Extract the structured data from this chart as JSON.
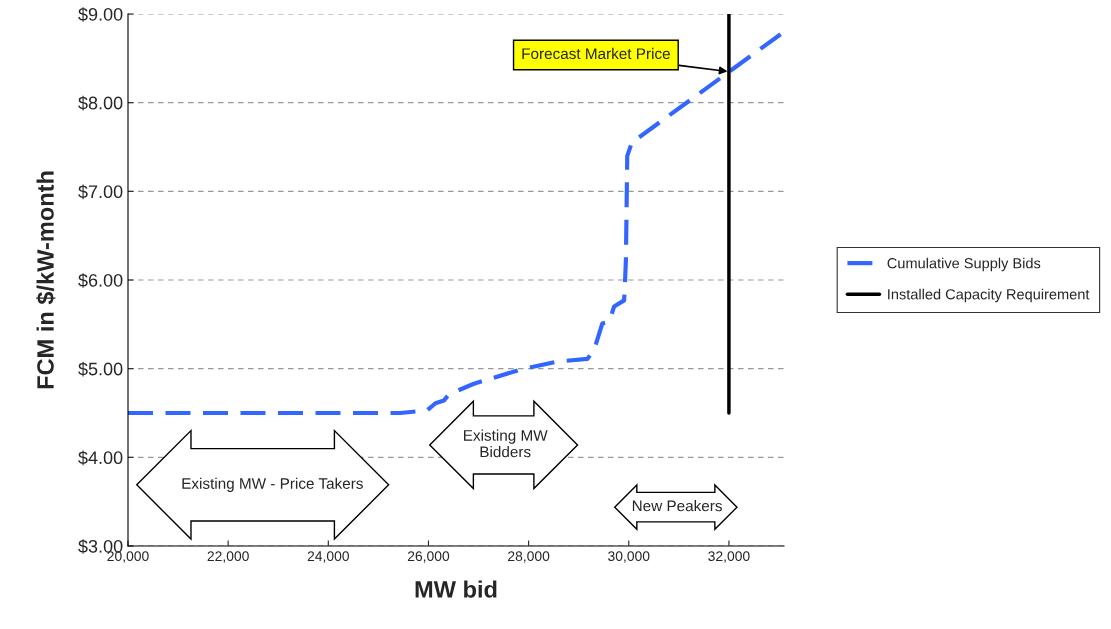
{
  "chart_data": {
    "type": "line",
    "xlabel": "MW bid",
    "ylabel": "FCM in $/kW-month",
    "series": [
      {
        "name": "Cumulative Supply Bids",
        "color": "#3366ff",
        "line_style": "dashed",
        "x": [
          20000,
          25040,
          25440,
          25973,
          26140,
          26307,
          26407,
          26907,
          27840,
          28573,
          29173,
          29307,
          29473,
          29607,
          29707,
          29907,
          29927,
          29943,
          29970,
          30073,
          30160,
          33100
        ],
        "values": [
          4.5,
          4.5,
          4.5,
          4.53,
          4.61,
          4.64,
          4.71,
          4.83,
          4.99,
          5.08,
          5.11,
          5.21,
          5.51,
          5.53,
          5.7,
          5.77,
          6.0,
          6.23,
          7.4,
          7.57,
          7.59,
          8.8
        ]
      },
      {
        "name": "Installed Capacity Requirement",
        "color": "#000000",
        "line_style": "solid",
        "x": [
          32000,
          32000
        ],
        "values": [
          4.5,
          9.0
        ]
      }
    ],
    "annotations": [
      {
        "text": "Forecast Market Price",
        "x": 32000,
        "y": 8.35
      },
      "Existing MW - Price Takers",
      "Existing MW\nBidders",
      "New Peakers"
    ],
    "xlim": [
      20000,
      33100
    ],
    "ylim": [
      3,
      9
    ],
    "xticks": [
      {
        "value": 20000,
        "label": "20,000"
      },
      {
        "value": 22000,
        "label": "22,000"
      },
      {
        "value": 24000,
        "label": "24,000"
      },
      {
        "value": 26000,
        "label": "26,000"
      },
      {
        "value": 28000,
        "label": "28,000"
      },
      {
        "value": 30000,
        "label": "30,000"
      },
      {
        "value": 32000,
        "label": "32,000"
      }
    ],
    "yticks": [
      {
        "value": 3,
        "label": "$3.00"
      },
      {
        "value": 4,
        "label": "$4.00"
      },
      {
        "value": 5,
        "label": "$5.00"
      },
      {
        "value": 6,
        "label": "$6.00"
      },
      {
        "value": 7,
        "label": "$7.00"
      },
      {
        "value": 8,
        "label": "$8.00"
      },
      {
        "value": 9,
        "label": "$9.00"
      }
    ],
    "grid": "y",
    "legend": "right",
    "marker": "none"
  }
}
